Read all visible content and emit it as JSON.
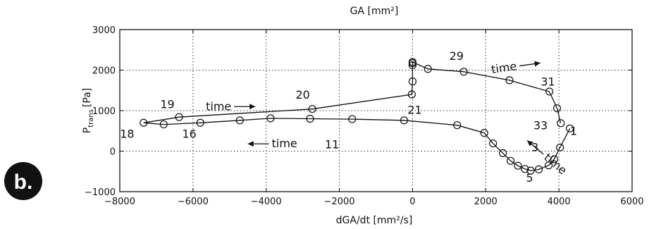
{
  "panel_label": "b.",
  "chart_data": {
    "type": "line",
    "title": "",
    "top_label": "GA [mm²]",
    "xlabel": "dGA/dt [mm²/s]",
    "ylabel_main": "P",
    "ylabel_sub": "trans",
    "ylabel_unit": "[Pa]",
    "xlim": [
      -8000,
      6000
    ],
    "ylim": [
      -1000,
      3000
    ],
    "xticks": [
      -8000,
      -6000,
      -4000,
      -2000,
      0,
      2000,
      4000,
      6000
    ],
    "yticks": [
      -1000,
      0,
      1000,
      2000,
      3000
    ],
    "grid": true,
    "series": [
      {
        "x": [
          4300,
          4030,
          3870,
          3720,
          3450,
          3230,
          3070,
          2880,
          2680,
          2470,
          2200,
          1960,
          1220,
          -230,
          -1650,
          -2800,
          -3880,
          -4720,
          -5800,
          -6800,
          -7350,
          -6380,
          -2740,
          -20,
          0,
          0,
          0,
          0,
          420,
          1400,
          2650,
          3740,
          3950,
          4050
        ],
        "y": [
          560,
          90,
          -200,
          -350,
          -450,
          -480,
          -440,
          -360,
          -240,
          -50,
          190,
          450,
          640,
          760,
          790,
          800,
          810,
          760,
          700,
          660,
          700,
          840,
          1040,
          1400,
          1720,
          2120,
          2170,
          2200,
          2030,
          1960,
          1750,
          1470,
          1060,
          690
        ]
      }
    ],
    "point_labels": [
      {
        "text": "1",
        "x": 4400,
        "y": 400
      },
      {
        "text": "3",
        "x": 3350,
        "y": 0
      },
      {
        "text": "5",
        "x": 3200,
        "y": -760
      },
      {
        "text": "11",
        "x": -2200,
        "y": 70
      },
      {
        "text": "16",
        "x": -6100,
        "y": 330
      },
      {
        "text": "18",
        "x": -7800,
        "y": 330
      },
      {
        "text": "19",
        "x": -6700,
        "y": 1060
      },
      {
        "text": "20",
        "x": -3000,
        "y": 1300
      },
      {
        "text": "21",
        "x": 60,
        "y": 920
      },
      {
        "text": "29",
        "x": 1200,
        "y": 2250
      },
      {
        "text": "31",
        "x": 3700,
        "y": 1620
      },
      {
        "text": "33",
        "x": 3500,
        "y": 540
      }
    ],
    "annotations": [
      {
        "text": "time",
        "x": -5300,
        "y": 1100,
        "angle": 0,
        "arrow": "right"
      },
      {
        "text": "time",
        "x": -3500,
        "y": 180,
        "angle": 0,
        "arrow": "left"
      },
      {
        "text": "time",
        "x": 2500,
        "y": 2050,
        "angle": 8,
        "arrow": "right"
      },
      {
        "text": "time",
        "x": 3900,
        "y": -320,
        "angle": -40,
        "arrow": "left"
      }
    ]
  }
}
